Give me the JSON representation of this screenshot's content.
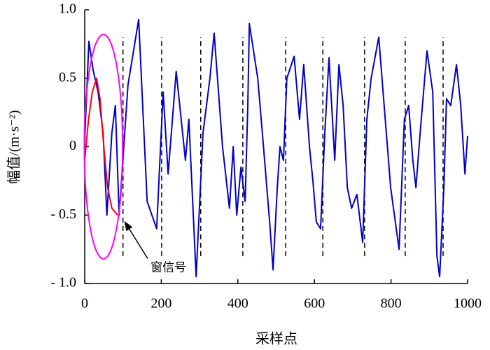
{
  "chart_data": {
    "type": "line",
    "xlabel": "采样点",
    "ylabel": "幅值/(m·s⁻²)",
    "xlim": [
      0,
      1000
    ],
    "xticks": [
      0,
      200,
      400,
      600,
      800,
      1000
    ],
    "ylim": [
      -1,
      1
    ],
    "yticks": [
      {
        "value": -1,
        "label": "- 1.0"
      },
      {
        "value": -0.5,
        "label": "- 0.5"
      },
      0,
      {
        "value": 0.5,
        "label": "0.5"
      },
      {
        "value": 1,
        "label": "1.0"
      }
    ],
    "series": [
      {
        "color": "#0000cc",
        "x": [
          0,
          11,
          22,
          35,
          48,
          58,
          71,
          80,
          90,
          113,
          141,
          163,
          188,
          205,
          218,
          239,
          263,
          272,
          291,
          309,
          327,
          338,
          360,
          378,
          388,
          397,
          408,
          419,
          426,
          430,
          452,
          464,
          483,
          492,
          503,
          510,
          519,
          528,
          547,
          561,
          572,
          587,
          596,
          605,
          616,
          627,
          638,
          653,
          664,
          675,
          686,
          697,
          711,
          726,
          737,
          748,
          768,
          782,
          799,
          821,
          835,
          846,
          857,
          865,
          876,
          894,
          909,
          920,
          927,
          938,
          945,
          956,
          971,
          982,
          993,
          1000
        ],
        "values": [
          0.05,
          0.77,
          0.56,
          0.4,
          0.1,
          -0.5,
          0.1,
          0.3,
          -0.5,
          0.45,
          0.93,
          -0.4,
          -0.6,
          0.4,
          -0.2,
          0.55,
          -0.1,
          0.2,
          -0.95,
          0.1,
          0.5,
          0.83,
          0,
          -0.45,
          0,
          -0.5,
          -0.15,
          -0.4,
          0.3,
          0.9,
          0.5,
          0.1,
          -0.55,
          -0.9,
          -0.3,
          0,
          -0.1,
          0.5,
          0.66,
          0.2,
          0.6,
          0,
          -0.25,
          -0.55,
          -0.6,
          0.1,
          0.65,
          -0.1,
          0.6,
          0.3,
          -0.3,
          -0.45,
          -0.35,
          -0.7,
          0.2,
          0.5,
          0.8,
          0.3,
          -0.3,
          -0.75,
          0.2,
          0.3,
          -0.1,
          -0.3,
          0.1,
          0.7,
          0.4,
          -0.8,
          -0.95,
          -0.3,
          0.35,
          0.3,
          0.6,
          0.3,
          -0.2,
          0.08
        ]
      },
      {
        "color": "#ff0000",
        "x": [
          0,
          10,
          20,
          31,
          40,
          50,
          60,
          71,
          86
        ],
        "values": [
          -0.1,
          0.2,
          0.4,
          0.5,
          0.35,
          0,
          -0.3,
          -0.45,
          -0.5
        ]
      }
    ],
    "vlines": [
      100,
      201,
      303,
      413,
      525,
      622,
      731,
      837,
      936
    ],
    "vline_span": [
      -0.8,
      0.8
    ],
    "ellipse": {
      "cx": 49,
      "cy": 0,
      "rx": 50,
      "ry": 0.82,
      "color": "#ff00ff"
    },
    "annotation": {
      "text": "窗信号",
      "xy": [
        105,
        -0.55
      ],
      "xytext": [
        172,
        -0.88
      ]
    }
  }
}
